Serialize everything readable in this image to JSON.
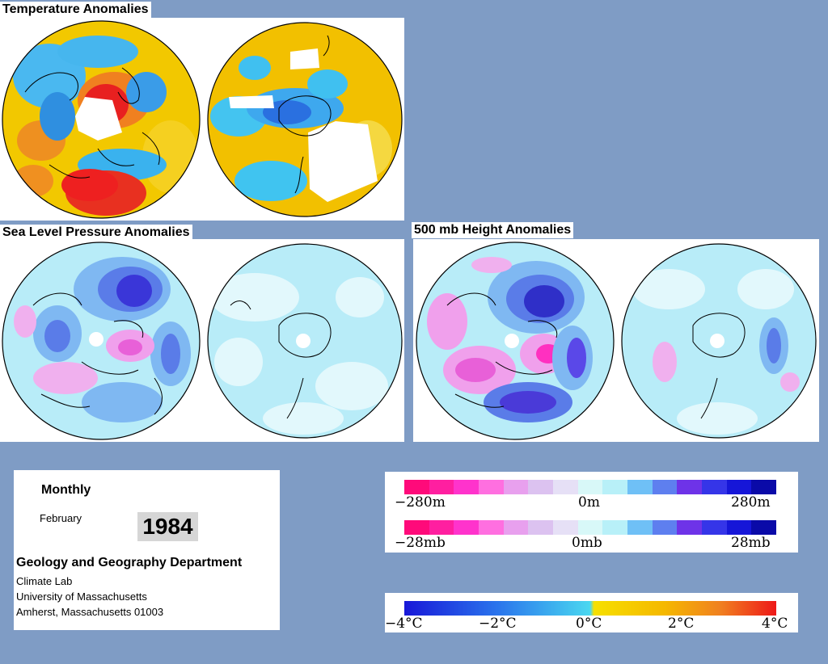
{
  "titles": {
    "temperature": "Temperature Anomalies",
    "slp": "Sea Level Pressure Anomalies",
    "height500": "500 mb Height Anomalies"
  },
  "info": {
    "period": "Monthly",
    "month": "February",
    "year": "1984",
    "department": "Geology and Geography Department",
    "lab": "Climate Lab",
    "university": "University of Massachusetts",
    "address": "Amherst, Massachusetts 01003"
  },
  "legend_height": {
    "ticks": [
      "−280m",
      "0m",
      "280m"
    ],
    "colors": [
      "#ff0a7a",
      "#ff1fa0",
      "#ff33cc",
      "#ff6fe0",
      "#e8a0ee",
      "#dcc2f0",
      "#e6e0f6",
      "#d8f8f8",
      "#b8f0f8",
      "#6fc0f6",
      "#5e7fef",
      "#6e33e8",
      "#3535e8",
      "#1616d8",
      "#0a0aa8"
    ]
  },
  "legend_pressure": {
    "ticks": [
      "−28mb",
      "0mb",
      "28mb"
    ],
    "colors": [
      "#ff0a7a",
      "#ff1fa0",
      "#ff33cc",
      "#ff6fe0",
      "#e8a0ee",
      "#dcc2f0",
      "#e6e0f6",
      "#d8f8f8",
      "#b8f0f8",
      "#6fc0f6",
      "#5e7fef",
      "#6e33e8",
      "#3535e8",
      "#1616d8",
      "#0a0aa8"
    ]
  },
  "legend_temp": {
    "ticks": [
      "−4°C",
      "−2°C",
      "0°C",
      "2°C",
      "4°C"
    ]
  },
  "colors": {
    "background": "#7f9cc5",
    "warm": "#f5c400",
    "hot": "#ee2222",
    "cool": "#40c4f0",
    "cold": "#1850d8",
    "low_pressure": "#5a48e8",
    "high_pressure": "#ee66dd",
    "neutral": "#b8eef8"
  }
}
